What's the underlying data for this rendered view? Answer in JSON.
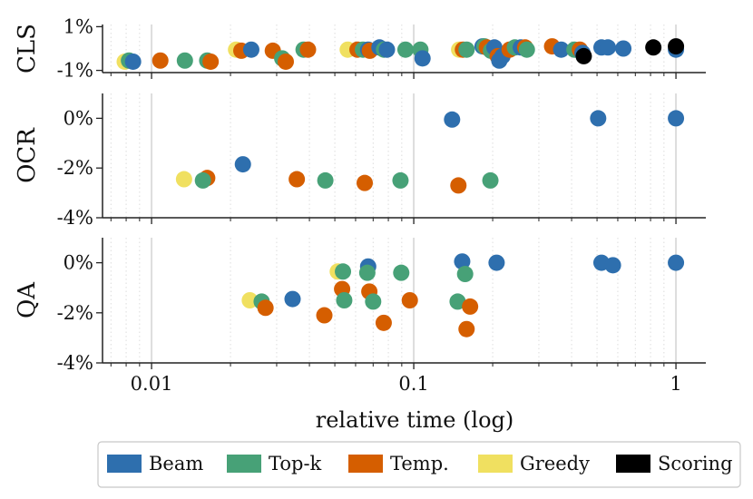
{
  "chart_data": {
    "type": "scatter",
    "x_scale": "log",
    "xlabel": "relative time (log)",
    "xlim": [
      0.0065,
      1.3
    ],
    "x_ticks": [
      {
        "value": 0.01,
        "label": "0.01"
      },
      {
        "value": 0.1,
        "label": "0.1"
      },
      {
        "value": 1,
        "label": "1"
      }
    ],
    "grid": "vertical dotted minor, solid major",
    "legend_position": "bottom",
    "series": [
      {
        "name": "Beam",
        "color": "#2e6fae"
      },
      {
        "name": "Top-k",
        "color": "#47a177"
      },
      {
        "name": "Temp.",
        "color": "#d55e00"
      },
      {
        "name": "Greedy",
        "color": "#f0e060"
      },
      {
        "name": "Scoring",
        "color": "#000000"
      }
    ],
    "panels": [
      {
        "label": "CLS",
        "ylim": [
          -1.1,
          1.1
        ],
        "y_ticks": [
          {
            "value": 1,
            "label": "1%"
          },
          {
            "value": -1,
            "label": "-1%"
          }
        ],
        "points": [
          {
            "series": "Greedy",
            "x": 0.0079,
            "y": -0.6
          },
          {
            "series": "Top-k",
            "x": 0.0082,
            "y": -0.55
          },
          {
            "series": "Beam",
            "x": 0.0085,
            "y": -0.6
          },
          {
            "series": "Temp.",
            "x": 0.0108,
            "y": -0.55
          },
          {
            "series": "Top-k",
            "x": 0.0134,
            "y": -0.55
          },
          {
            "series": "Top-k",
            "x": 0.0163,
            "y": -0.55
          },
          {
            "series": "Temp.",
            "x": 0.0168,
            "y": -0.6
          },
          {
            "series": "Greedy",
            "x": 0.021,
            "y": -0.05
          },
          {
            "series": "Temp.",
            "x": 0.022,
            "y": -0.1
          },
          {
            "series": "Beam",
            "x": 0.024,
            "y": -0.05
          },
          {
            "series": "Temp.",
            "x": 0.029,
            "y": -0.1
          },
          {
            "series": "Top-k",
            "x": 0.0315,
            "y": -0.45
          },
          {
            "series": "Temp.",
            "x": 0.0325,
            "y": -0.6
          },
          {
            "series": "Top-k",
            "x": 0.038,
            "y": -0.05
          },
          {
            "series": "Temp.",
            "x": 0.0395,
            "y": -0.05
          },
          {
            "series": "Greedy",
            "x": 0.056,
            "y": -0.05
          },
          {
            "series": "Temp.",
            "x": 0.061,
            "y": -0.05
          },
          {
            "series": "Top-k",
            "x": 0.064,
            "y": -0.05
          },
          {
            "series": "Beam",
            "x": 0.067,
            "y": -0.05
          },
          {
            "series": "Temp.",
            "x": 0.068,
            "y": -0.1
          },
          {
            "series": "Beam",
            "x": 0.074,
            "y": 0.05
          },
          {
            "series": "Top-k",
            "x": 0.077,
            "y": -0.05
          },
          {
            "series": "Beam",
            "x": 0.079,
            "y": -0.05
          },
          {
            "series": "Top-k",
            "x": 0.093,
            "y": -0.05
          },
          {
            "series": "Top-k",
            "x": 0.106,
            "y": -0.05
          },
          {
            "series": "Beam",
            "x": 0.108,
            "y": -0.45
          },
          {
            "series": "Greedy",
            "x": 0.149,
            "y": -0.05
          },
          {
            "series": "Temp.",
            "x": 0.154,
            "y": -0.05
          },
          {
            "series": "Top-k",
            "x": 0.159,
            "y": -0.05
          },
          {
            "series": "Beam",
            "x": 0.183,
            "y": 0.1
          },
          {
            "series": "Top-k",
            "x": 0.186,
            "y": 0.1
          },
          {
            "series": "Temp.",
            "x": 0.19,
            "y": 0.05
          },
          {
            "series": "Top-k",
            "x": 0.197,
            "y": -0.1
          },
          {
            "series": "Beam",
            "x": 0.203,
            "y": 0.05
          },
          {
            "series": "Temp.",
            "x": 0.209,
            "y": -0.35
          },
          {
            "series": "Beam",
            "x": 0.212,
            "y": -0.55
          },
          {
            "series": "Beam",
            "x": 0.218,
            "y": -0.35
          },
          {
            "series": "Temp.",
            "x": 0.232,
            "y": -0.05
          },
          {
            "series": "Top-k",
            "x": 0.243,
            "y": 0.05
          },
          {
            "series": "Beam",
            "x": 0.256,
            "y": 0.05
          },
          {
            "series": "Temp.",
            "x": 0.266,
            "y": 0.05
          },
          {
            "series": "Top-k",
            "x": 0.27,
            "y": -0.05
          },
          {
            "series": "Temp.",
            "x": 0.337,
            "y": 0.1
          },
          {
            "series": "Beam",
            "x": 0.365,
            "y": -0.05
          },
          {
            "series": "Top-k",
            "x": 0.41,
            "y": -0.05
          },
          {
            "series": "Temp.",
            "x": 0.43,
            "y": -0.05
          },
          {
            "series": "Beam",
            "x": 0.44,
            "y": -0.2
          },
          {
            "series": "Scoring",
            "x": 0.445,
            "y": -0.35
          },
          {
            "series": "Beam",
            "x": 0.52,
            "y": 0.05
          },
          {
            "series": "Beam",
            "x": 0.55,
            "y": 0.05
          },
          {
            "series": "Beam",
            "x": 0.63,
            "y": 0.0
          },
          {
            "series": "Scoring",
            "x": 0.82,
            "y": 0.05
          },
          {
            "series": "Beam",
            "x": 1.0,
            "y": -0.05
          },
          {
            "series": "Scoring",
            "x": 1.0,
            "y": 0.1
          }
        ]
      },
      {
        "label": "OCR",
        "ylim": [
          -4,
          1.0
        ],
        "y_ticks": [
          {
            "value": 0,
            "label": "0%"
          },
          {
            "value": -2,
            "label": "-2%"
          },
          {
            "value": -4,
            "label": "-4%"
          }
        ],
        "points": [
          {
            "series": "Greedy",
            "x": 0.0133,
            "y": -2.45
          },
          {
            "series": "Temp.",
            "x": 0.0163,
            "y": -2.4
          },
          {
            "series": "Top-k",
            "x": 0.0157,
            "y": -2.5
          },
          {
            "series": "Beam",
            "x": 0.0223,
            "y": -1.85
          },
          {
            "series": "Temp.",
            "x": 0.0358,
            "y": -2.45
          },
          {
            "series": "Top-k",
            "x": 0.046,
            "y": -2.5
          },
          {
            "series": "Temp.",
            "x": 0.065,
            "y": -2.6
          },
          {
            "series": "Top-k",
            "x": 0.089,
            "y": -2.5
          },
          {
            "series": "Temp.",
            "x": 0.148,
            "y": -2.7
          },
          {
            "series": "Beam",
            "x": 0.14,
            "y": -0.05
          },
          {
            "series": "Top-k",
            "x": 0.196,
            "y": -2.5
          },
          {
            "series": "Beam",
            "x": 0.505,
            "y": 0.0
          },
          {
            "series": "Beam",
            "x": 1.0,
            "y": 0.0
          }
        ]
      },
      {
        "label": "QA",
        "ylim": [
          -4,
          1.0
        ],
        "y_ticks": [
          {
            "value": 0,
            "label": "0%"
          },
          {
            "value": -2,
            "label": "-2%"
          },
          {
            "value": -4,
            "label": "-4%"
          }
        ],
        "points": [
          {
            "series": "Greedy",
            "x": 0.0237,
            "y": -1.5
          },
          {
            "series": "Top-k",
            "x": 0.0263,
            "y": -1.55
          },
          {
            "series": "Temp.",
            "x": 0.0272,
            "y": -1.8
          },
          {
            "series": "Beam",
            "x": 0.0345,
            "y": -1.45
          },
          {
            "series": "Temp.",
            "x": 0.0456,
            "y": -2.1
          },
          {
            "series": "Greedy",
            "x": 0.0513,
            "y": -0.35
          },
          {
            "series": "Top-k",
            "x": 0.0537,
            "y": -0.35
          },
          {
            "series": "Temp.",
            "x": 0.0533,
            "y": -1.05
          },
          {
            "series": "Top-k",
            "x": 0.0543,
            "y": -1.5
          },
          {
            "series": "Beam",
            "x": 0.067,
            "y": -0.15
          },
          {
            "series": "Top-k",
            "x": 0.0665,
            "y": -0.4
          },
          {
            "series": "Temp.",
            "x": 0.0677,
            "y": -1.15
          },
          {
            "series": "Top-k",
            "x": 0.07,
            "y": -1.55
          },
          {
            "series": "Temp.",
            "x": 0.0768,
            "y": -2.4
          },
          {
            "series": "Top-k",
            "x": 0.0896,
            "y": -0.4
          },
          {
            "series": "Temp.",
            "x": 0.0966,
            "y": -1.5
          },
          {
            "series": "Beam",
            "x": 0.153,
            "y": 0.05
          },
          {
            "series": "Top-k",
            "x": 0.157,
            "y": -0.45
          },
          {
            "series": "Top-k",
            "x": 0.147,
            "y": -1.55
          },
          {
            "series": "Temp.",
            "x": 0.164,
            "y": -1.75
          },
          {
            "series": "Temp.",
            "x": 0.159,
            "y": -2.65
          },
          {
            "series": "Beam",
            "x": 0.207,
            "y": 0.0
          },
          {
            "series": "Beam",
            "x": 0.52,
            "y": 0.0
          },
          {
            "series": "Beam",
            "x": 0.575,
            "y": -0.1
          },
          {
            "series": "Beam",
            "x": 1.0,
            "y": 0.0
          }
        ]
      }
    ]
  }
}
